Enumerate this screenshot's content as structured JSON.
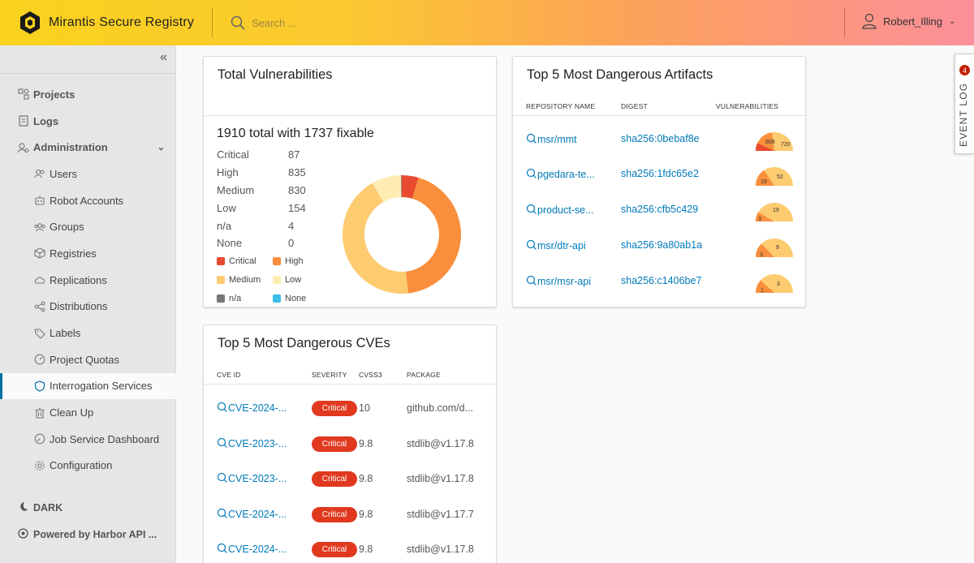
{
  "app": {
    "title": "Mirantis Secure Registry"
  },
  "search": {
    "placeholder": "Search ..."
  },
  "user": {
    "name": "Robert_Illing"
  },
  "sidebar": {
    "items": [
      {
        "label": "Projects",
        "icon": "projects-icon"
      },
      {
        "label": "Logs",
        "icon": "logs-icon"
      },
      {
        "label": "Administration",
        "icon": "administration-icon"
      },
      {
        "label": "Users",
        "icon": "users-icon"
      },
      {
        "label": "Robot Accounts",
        "icon": "robot-icon"
      },
      {
        "label": "Groups",
        "icon": "groups-icon"
      },
      {
        "label": "Registries",
        "icon": "registries-icon"
      },
      {
        "label": "Replications",
        "icon": "replications-icon"
      },
      {
        "label": "Distributions",
        "icon": "distributions-icon"
      },
      {
        "label": "Labels",
        "icon": "labels-icon"
      },
      {
        "label": "Project Quotas",
        "icon": "quotas-icon"
      },
      {
        "label": "Interrogation Services",
        "icon": "shield-icon",
        "active": true
      },
      {
        "label": "Clean Up",
        "icon": "trash-icon"
      },
      {
        "label": "Job Service Dashboard",
        "icon": "dashboard-icon"
      },
      {
        "label": "Configuration",
        "icon": "gear-icon"
      }
    ],
    "footer": {
      "dark": "DARK",
      "powered": "Powered by Harbor API ..."
    }
  },
  "total": {
    "title": "Total Vulnerabilities",
    "summary": "1910 total with 1737 fixable",
    "rows": [
      {
        "label": "Critical",
        "value": "87"
      },
      {
        "label": "High",
        "value": "835"
      },
      {
        "label": "Medium",
        "value": "830"
      },
      {
        "label": "Low",
        "value": "154"
      },
      {
        "label": "n/a",
        "value": "4"
      },
      {
        "label": "None",
        "value": "0"
      }
    ],
    "legend": [
      {
        "label": "Critical",
        "color": "#e84b30"
      },
      {
        "label": "High",
        "color": "#f98f3d"
      },
      {
        "label": "Medium",
        "color": "#fdcb70"
      },
      {
        "label": "Low",
        "color": "#feecb3"
      },
      {
        "label": "n/a",
        "color": "#777777"
      },
      {
        "label": "None",
        "color": "#3bbfe8"
      }
    ]
  },
  "chart_data": {
    "type": "pie",
    "categories": [
      "Critical",
      "High",
      "Medium",
      "Low",
      "n/a",
      "None"
    ],
    "values": [
      87,
      835,
      830,
      154,
      4,
      0
    ],
    "colors": [
      "#e84b30",
      "#f98f3d",
      "#fdcb70",
      "#feecb3",
      "#777777",
      "#3bbfe8"
    ],
    "donut": true
  },
  "artifacts": {
    "title": "Top 5 Most Dangerous Artifacts",
    "headers": [
      "REPOSITORY NAME",
      "DIGEST",
      "VULNERABILITIES"
    ],
    "rows": [
      {
        "repo": "msr/mmt",
        "digest": "sha256:0bebaf8e",
        "gauge": [
          "808",
          "720"
        ]
      },
      {
        "repo": "pgedara-te...",
        "digest": "sha256:1fdc65e2",
        "gauge": [
          "19",
          "52"
        ]
      },
      {
        "repo": "product-se...",
        "digest": "sha256:cfb5c429",
        "gauge": [
          "3",
          "19"
        ]
      },
      {
        "repo": "msr/dtr-api",
        "digest": "sha256:9a80ab1a",
        "gauge": [
          "3",
          "9"
        ]
      },
      {
        "repo": "msr/msr-api",
        "digest": "sha256:c1406be7",
        "gauge": [
          "1",
          "3"
        ]
      }
    ]
  },
  "cves": {
    "title": "Top 5 Most Dangerous CVEs",
    "headers": [
      "CVE ID",
      "SEVERITY",
      "CVSS3",
      "PACKAGE"
    ],
    "rows": [
      {
        "id": "CVE-2024-...",
        "severity": "Critical",
        "cvss": "10",
        "package": "github.com/d..."
      },
      {
        "id": "CVE-2023-...",
        "severity": "Critical",
        "cvss": "9.8",
        "package": "stdlib@v1.17.8"
      },
      {
        "id": "CVE-2023-...",
        "severity": "Critical",
        "cvss": "9.8",
        "package": "stdlib@v1.17.8"
      },
      {
        "id": "CVE-2024-...",
        "severity": "Critical",
        "cvss": "9.8",
        "package": "stdlib@v1.17.7"
      },
      {
        "id": "CVE-2024-...",
        "severity": "Critical",
        "cvss": "9.8",
        "package": "stdlib@v1.17.8"
      }
    ]
  },
  "eventlog": {
    "label": "EVENT LOG",
    "count": "4"
  }
}
